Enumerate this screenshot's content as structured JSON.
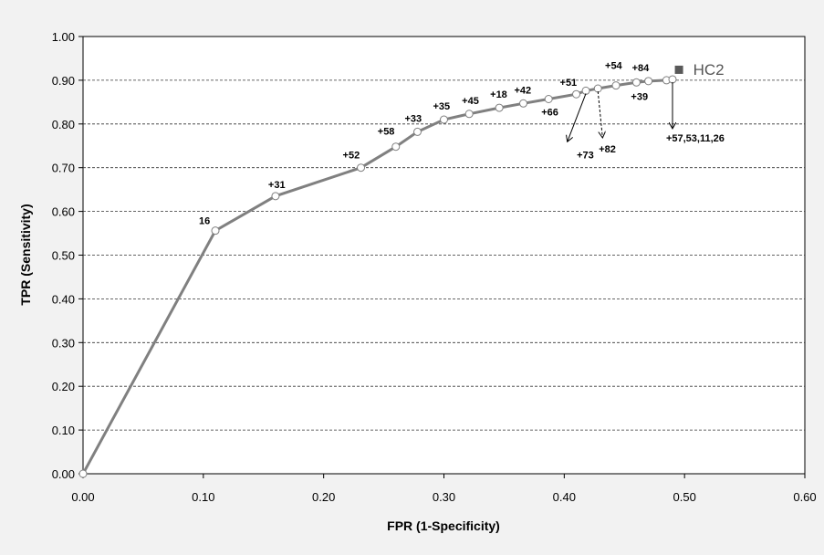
{
  "chart_data": {
    "type": "line",
    "title": "",
    "xlabel": "FPR (1-Specificity)",
    "ylabel": "TPR (Sensitivity)",
    "xlim": [
      0,
      0.6
    ],
    "ylim": [
      0,
      1.0
    ],
    "x_ticks": [
      "0.00",
      "0.10",
      "0.20",
      "0.30",
      "0.40",
      "0.50",
      "0.60"
    ],
    "y_ticks": [
      "0.00",
      "0.10",
      "0.20",
      "0.30",
      "0.40",
      "0.50",
      "0.60",
      "0.70",
      "0.80",
      "0.90",
      "1.00"
    ],
    "grid": "horizontal dashed",
    "series_label": "HC2",
    "series_label_point": {
      "x": 0.495,
      "y": 0.925
    },
    "line_color": "#808080",
    "points": [
      {
        "x": 0.0,
        "y": 0.0,
        "label": ""
      },
      {
        "x": 0.11,
        "y": 0.556,
        "label": "16"
      },
      {
        "x": 0.16,
        "y": 0.635,
        "label": "+31"
      },
      {
        "x": 0.231,
        "y": 0.7,
        "label": "+52"
      },
      {
        "x": 0.26,
        "y": 0.748,
        "label": "+58"
      },
      {
        "x": 0.278,
        "y": 0.782,
        "label": "+33"
      },
      {
        "x": 0.3,
        "y": 0.81,
        "label": "+35"
      },
      {
        "x": 0.321,
        "y": 0.823,
        "label": "+45"
      },
      {
        "x": 0.346,
        "y": 0.837,
        "label": "+18"
      },
      {
        "x": 0.366,
        "y": 0.847,
        "label": "+42"
      },
      {
        "x": 0.387,
        "y": 0.857,
        "label": "+66"
      },
      {
        "x": 0.41,
        "y": 0.868,
        "label": "+51"
      },
      {
        "x": 0.418,
        "y": 0.876,
        "label": "+73"
      },
      {
        "x": 0.428,
        "y": 0.881,
        "label": "+82"
      },
      {
        "x": 0.443,
        "y": 0.888,
        "label": "+54"
      },
      {
        "x": 0.46,
        "y": 0.895,
        "label": "+39"
      },
      {
        "x": 0.47,
        "y": 0.898,
        "label": "+84"
      },
      {
        "x": 0.485,
        "y": 0.9,
        "label": ""
      },
      {
        "x": 0.49,
        "y": 0.902,
        "label": "+57,53,11,26"
      }
    ]
  }
}
